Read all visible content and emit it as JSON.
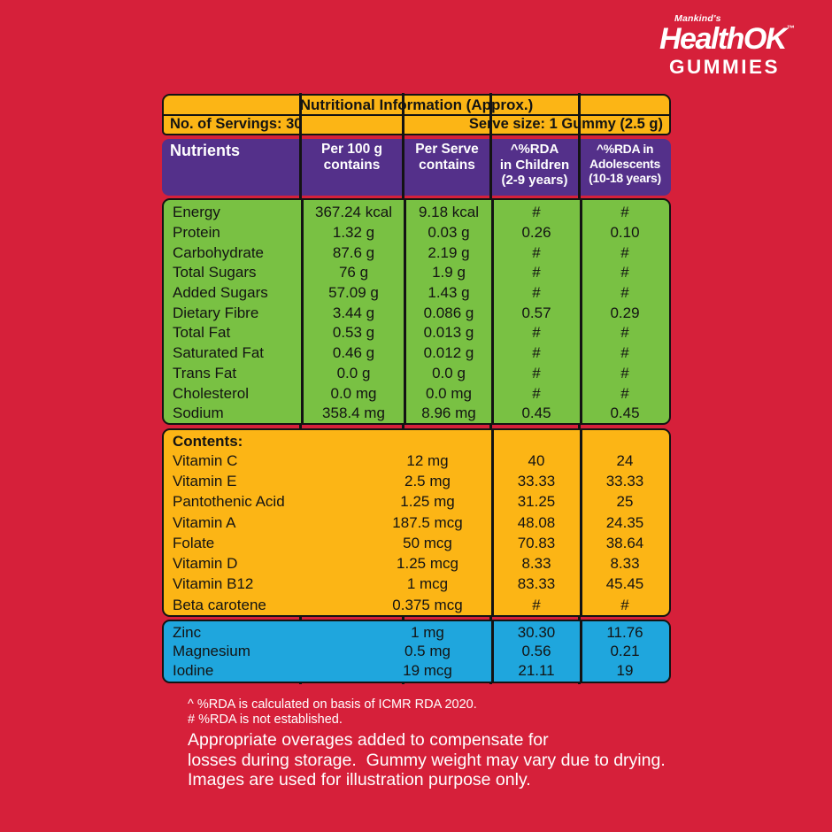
{
  "palette": {
    "background_red": "#d6203a",
    "yellow": "#fcb515",
    "purple": "#54308a",
    "green": "#79c143",
    "blue": "#1fa6dd",
    "border_black": "#131313",
    "text_white": "#ffffff"
  },
  "brand": {
    "tagline": "Mankind's",
    "name": "HealthOK",
    "trademark": "™",
    "product": "GUMMIES"
  },
  "table": {
    "title": "Nutritional Information (Approx.)",
    "servings": "No. of Servings: 30",
    "serve_size": "Serve size: 1 Gummy (2.5 g)",
    "header": {
      "nutrients": "Nutrients",
      "per_100g": [
        "Per 100 g",
        "contains"
      ],
      "per_serve": [
        "Per Serve",
        "contains"
      ],
      "rda_children": [
        "^%RDA",
        "in Children",
        "(2-9 years)"
      ],
      "rda_adolescents": [
        "^%RDA in",
        "Adolescents",
        "(10-18 years)"
      ]
    },
    "nutrients_rows": [
      {
        "name": "Energy",
        "per_100g": "367.24 kcal",
        "per_serve": "9.18 kcal",
        "rda_children": "#",
        "rda_adolescents": "#"
      },
      {
        "name": "Protein",
        "per_100g": "1.32 g",
        "per_serve": "0.03 g",
        "rda_children": "0.26",
        "rda_adolescents": "0.10"
      },
      {
        "name": "Carbohydrate",
        "per_100g": "87.6 g",
        "per_serve": "2.19 g",
        "rda_children": "#",
        "rda_adolescents": "#"
      },
      {
        "name": "Total Sugars",
        "per_100g": "76 g",
        "per_serve": "1.9 g",
        "rda_children": "#",
        "rda_adolescents": "#"
      },
      {
        "name": "Added Sugars",
        "per_100g": "57.09 g",
        "per_serve": "1.43 g",
        "rda_children": "#",
        "rda_adolescents": "#"
      },
      {
        "name": "Dietary Fibre",
        "per_100g": "3.44 g",
        "per_serve": "0.086 g",
        "rda_children": "0.57",
        "rda_adolescents": "0.29"
      },
      {
        "name": "Total Fat",
        "per_100g": "0.53 g",
        "per_serve": "0.013 g",
        "rda_children": "#",
        "rda_adolescents": "#"
      },
      {
        "name": "Saturated Fat",
        "per_100g": "0.46 g",
        "per_serve": "0.012 g",
        "rda_children": "#",
        "rda_adolescents": "#"
      },
      {
        "name": "Trans Fat",
        "per_100g": "0.0 g",
        "per_serve": "0.0 g",
        "rda_children": "#",
        "rda_adolescents": "#"
      },
      {
        "name": "Cholesterol",
        "per_100g": "0.0 mg",
        "per_serve": "0.0 mg",
        "rda_children": "#",
        "rda_adolescents": "#"
      },
      {
        "name": "Sodium",
        "per_100g": "358.4 mg",
        "per_serve": "8.96 mg",
        "rda_children": "0.45",
        "rda_adolescents": "0.45"
      }
    ],
    "contents_label": "Contents:",
    "contents_rows": [
      {
        "name": "Vitamin C",
        "amount": "12 mg",
        "rda_children": "40",
        "rda_adolescents": "24"
      },
      {
        "name": "Vitamin E",
        "amount": "2.5 mg",
        "rda_children": "33.33",
        "rda_adolescents": "33.33"
      },
      {
        "name": "Pantothenic Acid",
        "amount": "1.25 mg",
        "rda_children": "31.25",
        "rda_adolescents": "25"
      },
      {
        "name": "Vitamin A",
        "amount": "187.5 mcg",
        "rda_children": "48.08",
        "rda_adolescents": "24.35"
      },
      {
        "name": "Folate",
        "amount": "50 mcg",
        "rda_children": "70.83",
        "rda_adolescents": "38.64"
      },
      {
        "name": "Vitamin D",
        "amount": "1.25 mcg",
        "rda_children": "8.33",
        "rda_adolescents": "8.33"
      },
      {
        "name": "Vitamin B12",
        "amount": "1 mcg",
        "rda_children": "83.33",
        "rda_adolescents": "45.45"
      },
      {
        "name": "Beta carotene",
        "amount": "0.375 mcg",
        "rda_children": "#",
        "rda_adolescents": "#"
      }
    ],
    "minerals_rows": [
      {
        "name": "Zinc",
        "amount": "1 mg",
        "rda_children": "30.30",
        "rda_adolescents": "11.76"
      },
      {
        "name": "Magnesium",
        "amount": "0.5 mg",
        "rda_children": "0.56",
        "rda_adolescents": "0.21"
      },
      {
        "name": "Iodine",
        "amount": "19 mcg",
        "rda_children": "21.11",
        "rda_adolescents": "19"
      }
    ]
  },
  "footnotes": {
    "rda_basis": "^ %RDA is calculated on basis of ICMR RDA 2020.",
    "rda_not_established": "# %RDA is not established.",
    "disclaimer_lines": [
      "Appropriate overages added to compensate for",
      "losses during storage.  Gummy weight may vary due to drying.",
      "Images are used for illustration purpose only."
    ]
  }
}
